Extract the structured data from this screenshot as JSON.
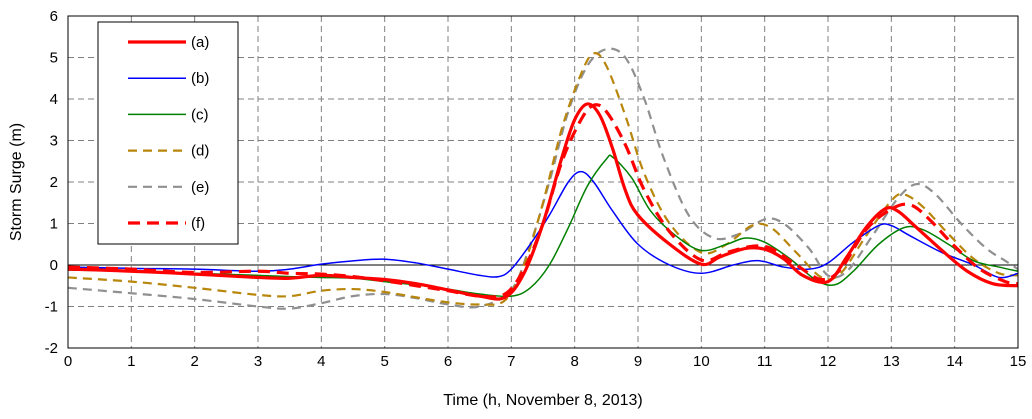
{
  "chart_data": {
    "type": "line",
    "xlabel": "Time (h, November 8, 2013)",
    "ylabel": "Storm Surge (m)",
    "xlim": [
      0,
      15
    ],
    "ylim": [
      -2,
      6
    ],
    "x_ticks": [
      0,
      1,
      2,
      3,
      4,
      5,
      6,
      7,
      8,
      9,
      10,
      11,
      12,
      13,
      14,
      15
    ],
    "x_tick_labels": [
      "0",
      "1",
      "2",
      "3",
      "4",
      "5",
      "6",
      "7",
      "8",
      "9",
      "10",
      "11",
      "12",
      "13",
      "14",
      "15"
    ],
    "y_ticks": [
      -2,
      -1,
      0,
      1,
      2,
      3,
      4,
      5,
      6
    ],
    "y_tick_labels": [
      "-2",
      "-1",
      "0",
      "1",
      "2",
      "3",
      "4",
      "5",
      "6"
    ],
    "grid": true,
    "grid_style": "dashed",
    "zero_line": true,
    "legend_position": "top-left",
    "series": [
      {
        "name": "(a)",
        "color": "#ff0000",
        "style": "solid-thick",
        "points": [
          [
            0,
            -0.1
          ],
          [
            0.5,
            -0.12
          ],
          [
            1,
            -0.15
          ],
          [
            1.5,
            -0.18
          ],
          [
            2,
            -0.22
          ],
          [
            2.5,
            -0.26
          ],
          [
            3,
            -0.3
          ],
          [
            3.5,
            -0.32
          ],
          [
            4,
            -0.25
          ],
          [
            4.5,
            -0.3
          ],
          [
            5,
            -0.35
          ],
          [
            5.5,
            -0.45
          ],
          [
            6,
            -0.6
          ],
          [
            6.5,
            -0.75
          ],
          [
            6.9,
            -0.78
          ],
          [
            7.2,
            -0.2
          ],
          [
            7.5,
            1.0
          ],
          [
            7.8,
            2.6
          ],
          [
            8,
            3.5
          ],
          [
            8.2,
            3.88
          ],
          [
            8.4,
            3.6
          ],
          [
            8.6,
            2.8
          ],
          [
            8.8,
            1.8
          ],
          [
            9,
            1.2
          ],
          [
            9.5,
            0.5
          ],
          [
            10,
            0.02
          ],
          [
            10.3,
            0.2
          ],
          [
            10.7,
            0.4
          ],
          [
            11,
            0.38
          ],
          [
            11.3,
            0.15
          ],
          [
            11.6,
            -0.25
          ],
          [
            12,
            -0.4
          ],
          [
            12.3,
            0.2
          ],
          [
            12.6,
            0.9
          ],
          [
            12.9,
            1.35
          ],
          [
            13.1,
            1.3
          ],
          [
            13.4,
            0.9
          ],
          [
            13.8,
            0.35
          ],
          [
            14.2,
            -0.15
          ],
          [
            14.6,
            -0.45
          ],
          [
            15,
            -0.5
          ]
        ]
      },
      {
        "name": "(b)",
        "color": "#0000ff",
        "style": "solid-thin",
        "points": [
          [
            0,
            -0.05
          ],
          [
            1,
            -0.08
          ],
          [
            2,
            -0.1
          ],
          [
            3,
            -0.15
          ],
          [
            3.5,
            -0.1
          ],
          [
            4,
            0.02
          ],
          [
            4.5,
            0.1
          ],
          [
            5,
            0.14
          ],
          [
            5.5,
            0.05
          ],
          [
            6,
            -0.1
          ],
          [
            6.5,
            -0.25
          ],
          [
            6.8,
            -0.28
          ],
          [
            7,
            -0.1
          ],
          [
            7.3,
            0.5
          ],
          [
            7.6,
            1.2
          ],
          [
            7.9,
            2.0
          ],
          [
            8.1,
            2.25
          ],
          [
            8.3,
            2.0
          ],
          [
            8.6,
            1.3
          ],
          [
            9,
            0.5
          ],
          [
            9.5,
            0.0
          ],
          [
            10,
            -0.2
          ],
          [
            10.5,
            0.0
          ],
          [
            10.8,
            0.1
          ],
          [
            11,
            0.08
          ],
          [
            11.3,
            -0.05
          ],
          [
            11.7,
            -0.1
          ],
          [
            12,
            0.05
          ],
          [
            12.4,
            0.55
          ],
          [
            12.8,
            0.95
          ],
          [
            13,
            0.95
          ],
          [
            13.3,
            0.7
          ],
          [
            13.8,
            0.3
          ],
          [
            14.3,
            0.0
          ],
          [
            14.7,
            -0.3
          ],
          [
            15,
            -0.2
          ]
        ]
      },
      {
        "name": "(c)",
        "color": "#008000",
        "style": "solid-thin",
        "points": [
          [
            0,
            -0.12
          ],
          [
            1,
            -0.15
          ],
          [
            2,
            -0.2
          ],
          [
            3,
            -0.25
          ],
          [
            3.5,
            -0.28
          ],
          [
            4,
            -0.3
          ],
          [
            4.5,
            -0.32
          ],
          [
            5,
            -0.4
          ],
          [
            5.5,
            -0.48
          ],
          [
            6,
            -0.58
          ],
          [
            6.5,
            -0.7
          ],
          [
            7,
            -0.75
          ],
          [
            7.3,
            -0.55
          ],
          [
            7.6,
            0.0
          ],
          [
            7.9,
            0.9
          ],
          [
            8.2,
            1.9
          ],
          [
            8.5,
            2.55
          ],
          [
            8.6,
            2.6
          ],
          [
            8.9,
            2.1
          ],
          [
            9.2,
            1.3
          ],
          [
            9.6,
            0.7
          ],
          [
            10,
            0.35
          ],
          [
            10.4,
            0.5
          ],
          [
            10.7,
            0.65
          ],
          [
            11,
            0.55
          ],
          [
            11.4,
            0.15
          ],
          [
            11.8,
            -0.35
          ],
          [
            12.1,
            -0.48
          ],
          [
            12.4,
            -0.15
          ],
          [
            12.8,
            0.5
          ],
          [
            13.2,
            0.9
          ],
          [
            13.5,
            0.85
          ],
          [
            13.9,
            0.5
          ],
          [
            14.3,
            0.1
          ],
          [
            14.7,
            -0.05
          ],
          [
            15,
            -0.15
          ]
        ]
      },
      {
        "name": "(d)",
        "color": "#b8860b",
        "style": "dashed",
        "points": [
          [
            0,
            -0.3
          ],
          [
            1,
            -0.4
          ],
          [
            2,
            -0.55
          ],
          [
            3,
            -0.72
          ],
          [
            3.5,
            -0.75
          ],
          [
            4,
            -0.62
          ],
          [
            4.5,
            -0.58
          ],
          [
            5,
            -0.65
          ],
          [
            5.5,
            -0.78
          ],
          [
            6,
            -0.9
          ],
          [
            6.5,
            -0.95
          ],
          [
            6.9,
            -0.85
          ],
          [
            7.2,
            0.0
          ],
          [
            7.5,
            1.5
          ],
          [
            7.8,
            3.3
          ],
          [
            8.1,
            4.6
          ],
          [
            8.3,
            5.1
          ],
          [
            8.5,
            4.8
          ],
          [
            8.8,
            3.6
          ],
          [
            9.1,
            2.2
          ],
          [
            9.5,
            1.0
          ],
          [
            10,
            0.3
          ],
          [
            10.4,
            0.5
          ],
          [
            10.8,
            0.95
          ],
          [
            11.1,
            0.9
          ],
          [
            11.5,
            0.3
          ],
          [
            11.9,
            -0.3
          ],
          [
            12.2,
            -0.2
          ],
          [
            12.6,
            0.7
          ],
          [
            13,
            1.55
          ],
          [
            13.2,
            1.7
          ],
          [
            13.5,
            1.4
          ],
          [
            13.9,
            0.75
          ],
          [
            14.3,
            0.15
          ],
          [
            14.7,
            -0.2
          ],
          [
            15,
            -0.25
          ]
        ]
      },
      {
        "name": "(e)",
        "color": "#909090",
        "style": "dashed",
        "points": [
          [
            0,
            -0.55
          ],
          [
            1,
            -0.68
          ],
          [
            2,
            -0.82
          ],
          [
            3,
            -1.0
          ],
          [
            3.5,
            -1.05
          ],
          [
            4,
            -0.92
          ],
          [
            4.5,
            -0.75
          ],
          [
            5,
            -0.7
          ],
          [
            5.5,
            -0.8
          ],
          [
            6,
            -0.95
          ],
          [
            6.5,
            -1.0
          ],
          [
            7,
            -0.6
          ],
          [
            7.3,
            0.5
          ],
          [
            7.6,
            2.0
          ],
          [
            7.9,
            3.7
          ],
          [
            8.2,
            4.8
          ],
          [
            8.5,
            5.2
          ],
          [
            8.8,
            5.0
          ],
          [
            9.1,
            4.0
          ],
          [
            9.4,
            2.6
          ],
          [
            9.8,
            1.2
          ],
          [
            10.2,
            0.65
          ],
          [
            10.6,
            0.75
          ],
          [
            11,
            1.1
          ],
          [
            11.3,
            1.0
          ],
          [
            11.7,
            0.4
          ],
          [
            12,
            -0.25
          ],
          [
            12.3,
            -0.15
          ],
          [
            12.7,
            0.7
          ],
          [
            13.1,
            1.6
          ],
          [
            13.4,
            1.95
          ],
          [
            13.7,
            1.7
          ],
          [
            14.1,
            1.0
          ],
          [
            14.5,
            0.4
          ],
          [
            14.8,
            0.1
          ],
          [
            15,
            -0.1
          ]
        ]
      },
      {
        "name": "(f)",
        "color": "#ff0000",
        "style": "dashed-thick",
        "points": [
          [
            0,
            -0.05
          ],
          [
            1,
            -0.1
          ],
          [
            2,
            -0.18
          ],
          [
            3,
            -0.15
          ],
          [
            3.5,
            -0.2
          ],
          [
            4,
            -0.22
          ],
          [
            4.5,
            -0.28
          ],
          [
            5,
            -0.38
          ],
          [
            5.5,
            -0.5
          ],
          [
            6,
            -0.62
          ],
          [
            6.5,
            -0.75
          ],
          [
            6.9,
            -0.7
          ],
          [
            7.2,
            -0.1
          ],
          [
            7.5,
            1.0
          ],
          [
            7.8,
            2.5
          ],
          [
            8.1,
            3.5
          ],
          [
            8.3,
            3.85
          ],
          [
            8.5,
            3.7
          ],
          [
            8.8,
            2.9
          ],
          [
            9.1,
            1.8
          ],
          [
            9.5,
            0.8
          ],
          [
            10,
            0.12
          ],
          [
            10.4,
            0.3
          ],
          [
            10.8,
            0.45
          ],
          [
            11.1,
            0.4
          ],
          [
            11.5,
            0.0
          ],
          [
            11.9,
            -0.35
          ],
          [
            12.2,
            -0.1
          ],
          [
            12.6,
            0.85
          ],
          [
            13,
            1.35
          ],
          [
            13.3,
            1.45
          ],
          [
            13.6,
            1.1
          ],
          [
            14,
            0.45
          ],
          [
            14.4,
            -0.1
          ],
          [
            14.8,
            -0.4
          ],
          [
            15,
            -0.45
          ]
        ]
      }
    ]
  }
}
